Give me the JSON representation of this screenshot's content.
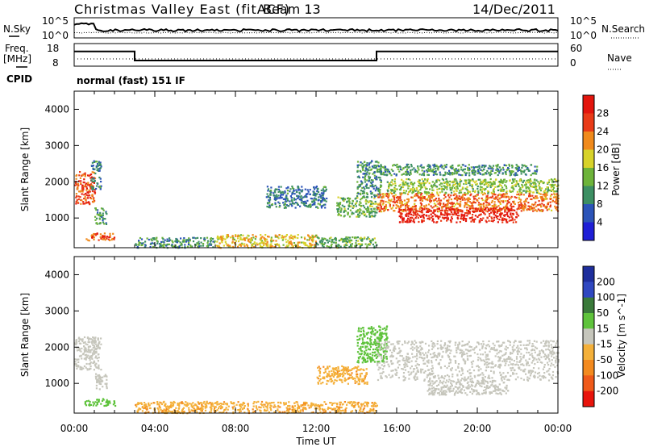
{
  "header": {
    "station": "Christmas Valley East (fitACF)",
    "beam": "Beam 13",
    "date": "14/Dec/2011"
  },
  "noise_panel": {
    "left_label": "N.Sky",
    "right_label": "N.Search",
    "left_ticks": [
      "10^5",
      "10^0"
    ],
    "right_ticks": [
      "10^5",
      "10^0"
    ]
  },
  "freq_panel": {
    "left_label_1": "Freq.",
    "left_label_2": "[MHz]",
    "right_label": "Nave",
    "left_ticks": [
      "18",
      "8"
    ],
    "right_ticks": [
      "60",
      "0"
    ],
    "freq_series": [
      {
        "t": 0.0,
        "mhz": 14.5
      },
      {
        "t": 3.0,
        "mhz": 14.5
      },
      {
        "t": 3.0,
        "mhz": 10.5
      },
      {
        "t": 15.0,
        "mhz": 10.5
      },
      {
        "t": 15.0,
        "mhz": 14.5
      },
      {
        "t": 24.0,
        "mhz": 14.5
      }
    ]
  },
  "cpid": {
    "label": "CPID",
    "value": "normal (fast) 151 IF"
  },
  "x_axis": {
    "label": "Time UT",
    "ticks": [
      "00:00",
      "04:00",
      "08:00",
      "12:00",
      "16:00",
      "20:00",
      "00:00"
    ],
    "range": [
      0,
      24
    ]
  },
  "colors": {
    "power": [
      "#1f1fd6",
      "#2c54b8",
      "#3d8f63",
      "#6db33a",
      "#d7d22a",
      "#f08a1c",
      "#e93b18",
      "#e3150d"
    ],
    "velocity": [
      "#1e2e9c",
      "#3048c0",
      "#3a7a3a",
      "#5fc33c",
      "#c6c6bc",
      "#f4b03a",
      "#f38a1f",
      "#ef5a1a",
      "#e8140c"
    ]
  },
  "chart_data": [
    {
      "type": "heatmap",
      "title": "Power",
      "xlabel": "Time UT",
      "ylabel": "Slant Range [km]",
      "xlim": [
        0,
        24
      ],
      "ylim": [
        180,
        4500
      ],
      "yticks": [
        "1000",
        "2000",
        "3000",
        "4000"
      ],
      "colorbar": {
        "label": "Power [dB]",
        "ticks": [
          "28",
          "24",
          "20",
          "16",
          "12",
          "8",
          "4"
        ],
        "range": [
          0,
          30
        ]
      },
      "regions": [
        {
          "t0": 0.0,
          "t1": 1.0,
          "r0": 1400,
          "r1": 2300,
          "v": 24
        },
        {
          "t0": 0.8,
          "t1": 1.3,
          "r0": 1800,
          "r1": 2600,
          "v": 8
        },
        {
          "t0": 1.0,
          "t1": 1.6,
          "r0": 850,
          "r1": 1300,
          "v": 10
        },
        {
          "t0": 0.5,
          "t1": 2.0,
          "r0": 400,
          "r1": 600,
          "v": 24
        },
        {
          "t0": 3.0,
          "t1": 7.0,
          "r0": 200,
          "r1": 480,
          "v": 10
        },
        {
          "t0": 7.0,
          "t1": 12.0,
          "r0": 200,
          "r1": 560,
          "v": 18
        },
        {
          "t0": 12.0,
          "t1": 15.0,
          "r0": 200,
          "r1": 500,
          "v": 12
        },
        {
          "t0": 9.5,
          "t1": 12.5,
          "r0": 1300,
          "r1": 1900,
          "v": 8
        },
        {
          "t0": 13.0,
          "t1": 15.0,
          "r0": 1050,
          "r1": 1600,
          "v": 12
        },
        {
          "t0": 14.0,
          "t1": 15.2,
          "r0": 1600,
          "r1": 2600,
          "v": 10
        },
        {
          "t0": 15.0,
          "t1": 23.0,
          "r0": 2200,
          "r1": 2500,
          "v": 10
        },
        {
          "t0": 15.5,
          "t1": 24.0,
          "r0": 1700,
          "r1": 2100,
          "v": 14
        },
        {
          "t0": 15.0,
          "t1": 24.0,
          "r0": 1200,
          "r1": 1700,
          "v": 22
        },
        {
          "t0": 16.0,
          "t1": 22.0,
          "r0": 900,
          "r1": 1300,
          "v": 27
        }
      ]
    },
    {
      "type": "heatmap",
      "title": "Velocity",
      "xlabel": "Time UT",
      "ylabel": "Slant Range [km]",
      "xlim": [
        0,
        24
      ],
      "ylim": [
        180,
        4500
      ],
      "yticks": [
        "1000",
        "2000",
        "3000",
        "4000"
      ],
      "colorbar": {
        "label": "Velocity [m s^-1]",
        "ticks": [
          "200",
          "100",
          "50",
          "15",
          "-15",
          "-50",
          "-100",
          "-200"
        ],
        "range": [
          -250,
          250
        ]
      },
      "regions": [
        {
          "t0": 0.0,
          "t1": 1.3,
          "r0": 1400,
          "r1": 2300,
          "v": 0
        },
        {
          "t0": 1.0,
          "t1": 1.6,
          "r0": 850,
          "r1": 1300,
          "v": 0
        },
        {
          "t0": 0.5,
          "t1": 2.0,
          "r0": 400,
          "r1": 600,
          "v": 30
        },
        {
          "t0": 3.0,
          "t1": 15.0,
          "r0": 200,
          "r1": 520,
          "v": -40
        },
        {
          "t0": 12.0,
          "t1": 14.5,
          "r0": 1000,
          "r1": 1500,
          "v": -40
        },
        {
          "t0": 14.0,
          "t1": 15.5,
          "r0": 1600,
          "r1": 2600,
          "v": 30
        },
        {
          "t0": 15.0,
          "t1": 24.0,
          "r0": 1100,
          "r1": 2200,
          "v": 0
        },
        {
          "t0": 17.5,
          "t1": 21.5,
          "r0": 700,
          "r1": 1100,
          "v": 0
        }
      ]
    }
  ]
}
